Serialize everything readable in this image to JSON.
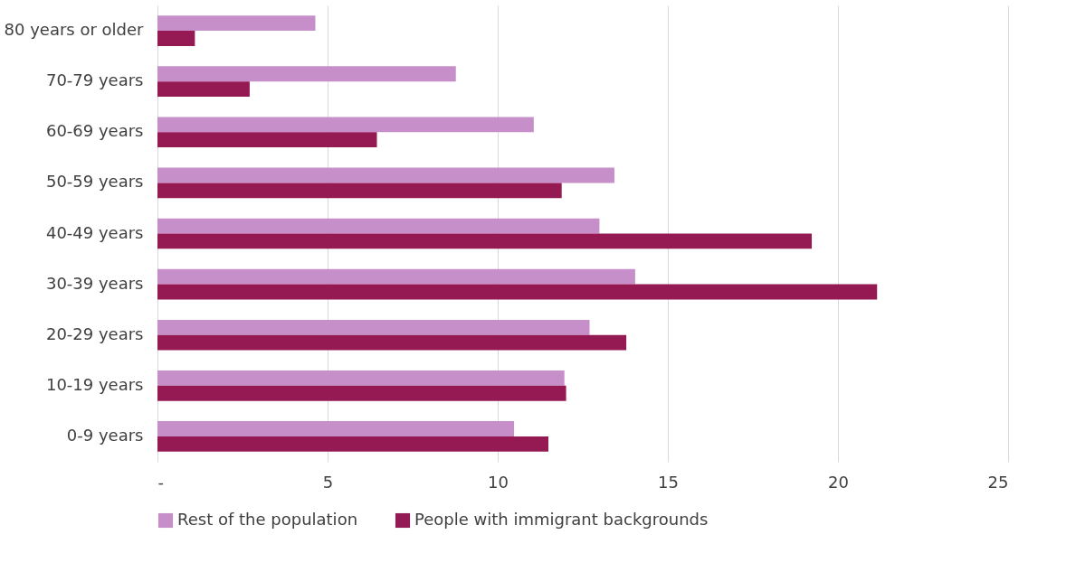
{
  "chart_data": {
    "type": "bar",
    "orientation": "horizontal",
    "categories": [
      "80 years or older",
      "70-79 years",
      "60-69 years",
      "50-59 years",
      "40-49 years",
      "30-39 years",
      "20-29 years",
      "10-19 years",
      "0-9 years"
    ],
    "series": [
      {
        "name": "Rest of the population",
        "color": "#c78fc9",
        "values": [
          4.64,
          8.77,
          11.06,
          13.43,
          12.99,
          14.04,
          12.7,
          11.96,
          10.48
        ]
      },
      {
        "name": "People with immigrant backgrounds",
        "color": "#951953",
        "values": [
          1.1,
          2.71,
          6.45,
          11.88,
          19.23,
          21.15,
          13.78,
          12.01,
          11.49
        ]
      }
    ],
    "xlim": [
      0,
      25
    ],
    "xticks": [
      {
        "value": 0,
        "label": "-"
      },
      5,
      10,
      15,
      20,
      25
    ],
    "grid": "x",
    "legend": "bottom"
  }
}
